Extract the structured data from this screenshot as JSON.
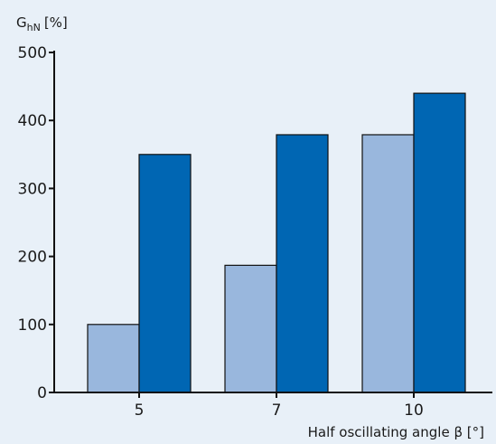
{
  "chart_data": {
    "type": "bar",
    "title": "",
    "ylabel_main": "G",
    "ylabel_sub": "hN",
    "ylabel_unit": "[%]",
    "xlabel": "Half oscillating angle β [°]",
    "categories": [
      "5",
      "7",
      "10"
    ],
    "ylim": [
      0,
      500
    ],
    "yticks": [
      0,
      100,
      200,
      300,
      400,
      500
    ],
    "grid": false,
    "legend": "none",
    "series": [
      {
        "color": "#99b7dd",
        "values": [
          100,
          187,
          379
        ]
      },
      {
        "color": "#0066b3",
        "values": [
          350,
          379,
          440
        ]
      }
    ]
  }
}
